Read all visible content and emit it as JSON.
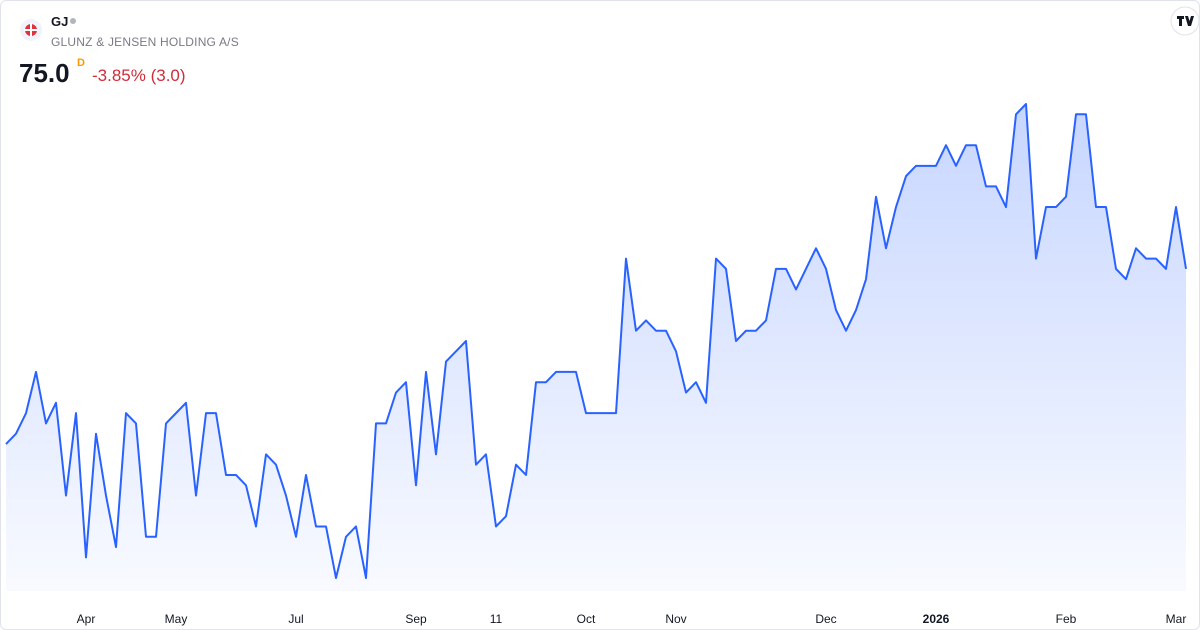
{
  "header": {
    "symbol": "GJ",
    "name": "GLUNZ & JENSEN HOLDING A/S",
    "price": "75.0",
    "interval": "D",
    "change": "-3.85% (3.0)"
  },
  "chart_data": {
    "type": "area",
    "color": "#2962ff",
    "categories": [
      null,
      null,
      null,
      null,
      null,
      null,
      null,
      null,
      "Apr",
      null,
      null,
      null,
      null,
      null,
      null,
      null,
      null,
      "May",
      null,
      null,
      null,
      null,
      null,
      null,
      null,
      null,
      null,
      null,
      null,
      "Jul",
      null,
      null,
      null,
      null,
      null,
      null,
      null,
      null,
      null,
      null,
      null,
      "Sep",
      null,
      null,
      null,
      null,
      null,
      null,
      null,
      "11",
      null,
      null,
      null,
      null,
      null,
      null,
      null,
      null,
      "Oct",
      null,
      null,
      null,
      null,
      null,
      null,
      null,
      null,
      "Nov",
      null,
      null,
      null,
      null,
      null,
      null,
      null,
      null,
      null,
      null,
      null,
      null,
      null,
      null,
      "Dec",
      null,
      null,
      null,
      null,
      null,
      null,
      null,
      null,
      null,
      null,
      "2026",
      null,
      null,
      null,
      null,
      null,
      null,
      null,
      null,
      null,
      null,
      null,
      null,
      "Feb",
      null,
      null,
      null,
      null,
      null,
      null,
      null,
      null,
      null,
      null,
      "Mar",
      null
    ],
    "values": [
      66.5,
      67,
      68,
      70,
      67.5,
      68.5,
      64,
      68,
      61,
      67,
      64,
      61.5,
      68,
      67.5,
      62,
      62,
      67.5,
      68,
      68.5,
      64,
      68,
      68,
      65,
      65,
      64.5,
      62.5,
      66,
      65.5,
      64,
      62,
      65,
      62.5,
      62.5,
      60,
      62,
      62.5,
      60,
      67.5,
      67.5,
      69,
      69.5,
      64.5,
      70,
      66,
      70.5,
      71,
      71.5,
      65.5,
      66,
      62.5,
      63,
      65.5,
      65,
      69.5,
      69.5,
      70,
      70,
      70,
      68,
      68,
      68,
      68,
      75.5,
      72,
      72.5,
      72,
      72,
      71,
      69,
      69.5,
      68.5,
      75.5,
      75,
      71.5,
      72,
      72,
      72.5,
      75,
      75,
      74,
      75,
      76,
      75,
      73,
      72,
      73,
      74.5,
      78.5,
      76,
      78,
      79.5,
      80,
      80,
      80,
      81,
      80,
      81,
      81,
      79,
      79,
      78,
      82.5,
      83,
      75.5,
      78,
      78,
      78.5,
      82.5,
      82.5,
      78,
      78,
      75,
      74.5,
      76,
      75.5,
      75.5,
      75,
      78,
      75
    ]
  }
}
